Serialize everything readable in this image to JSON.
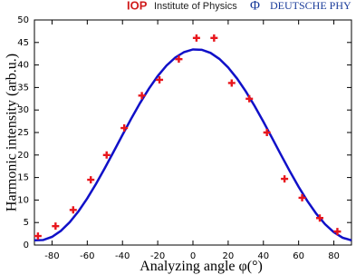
{
  "header": {
    "left_logo": "IOP",
    "left_text": "Institute of Physics",
    "right_logo": "Φ",
    "right_text": "DEUTSCHE PHY"
  },
  "chart_data": {
    "type": "scatter",
    "x_label": "Analyzing angle φ(°)",
    "y_label": "Harmonic intensity (arb.u.)",
    "xlim": [
      -90,
      90
    ],
    "xticks": [
      -80,
      -60,
      -40,
      -20,
      0,
      20,
      40,
      60,
      80
    ],
    "ylim": [
      0,
      50
    ],
    "yticks": [
      0,
      5,
      10,
      15,
      20,
      25,
      30,
      35,
      40,
      45,
      50
    ],
    "grid": false,
    "series": [
      {
        "style": "line",
        "color": "#1010c8",
        "x": [
          -90,
          -85,
          -80,
          -75,
          -70,
          -65,
          -60,
          -55,
          -50,
          -45,
          -40,
          -35,
          -30,
          -25,
          -20,
          -15,
          -10,
          -5,
          0,
          5,
          10,
          15,
          20,
          25,
          30,
          35,
          40,
          45,
          50,
          55,
          60,
          65,
          70,
          75,
          80,
          85,
          90
        ],
        "values": [
          1.05,
          1.12,
          1.82,
          3.15,
          5.06,
          7.49,
          10.37,
          13.61,
          17.11,
          20.77,
          24.47,
          28.11,
          31.57,
          34.74,
          37.54,
          39.87,
          41.66,
          42.87,
          43.45,
          43.38,
          42.68,
          41.35,
          39.44,
          37.01,
          34.13,
          30.89,
          27.39,
          23.73,
          20.03,
          16.39,
          12.93,
          9.76,
          6.96,
          4.63,
          2.84,
          1.63,
          1.05
        ]
      },
      {
        "style": "plus",
        "color": "#e8161c",
        "x": [
          -88,
          -78,
          -68,
          -58,
          -49,
          -39,
          -29,
          -19,
          -8,
          2,
          12,
          22,
          32,
          42,
          52,
          62,
          72,
          82
        ],
        "values": [
          2,
          4.2,
          7.8,
          14.5,
          20,
          26,
          33.2,
          36.7,
          41.3,
          46,
          46,
          36,
          32.5,
          25,
          14.7,
          10.5,
          6,
          3
        ]
      }
    ]
  }
}
